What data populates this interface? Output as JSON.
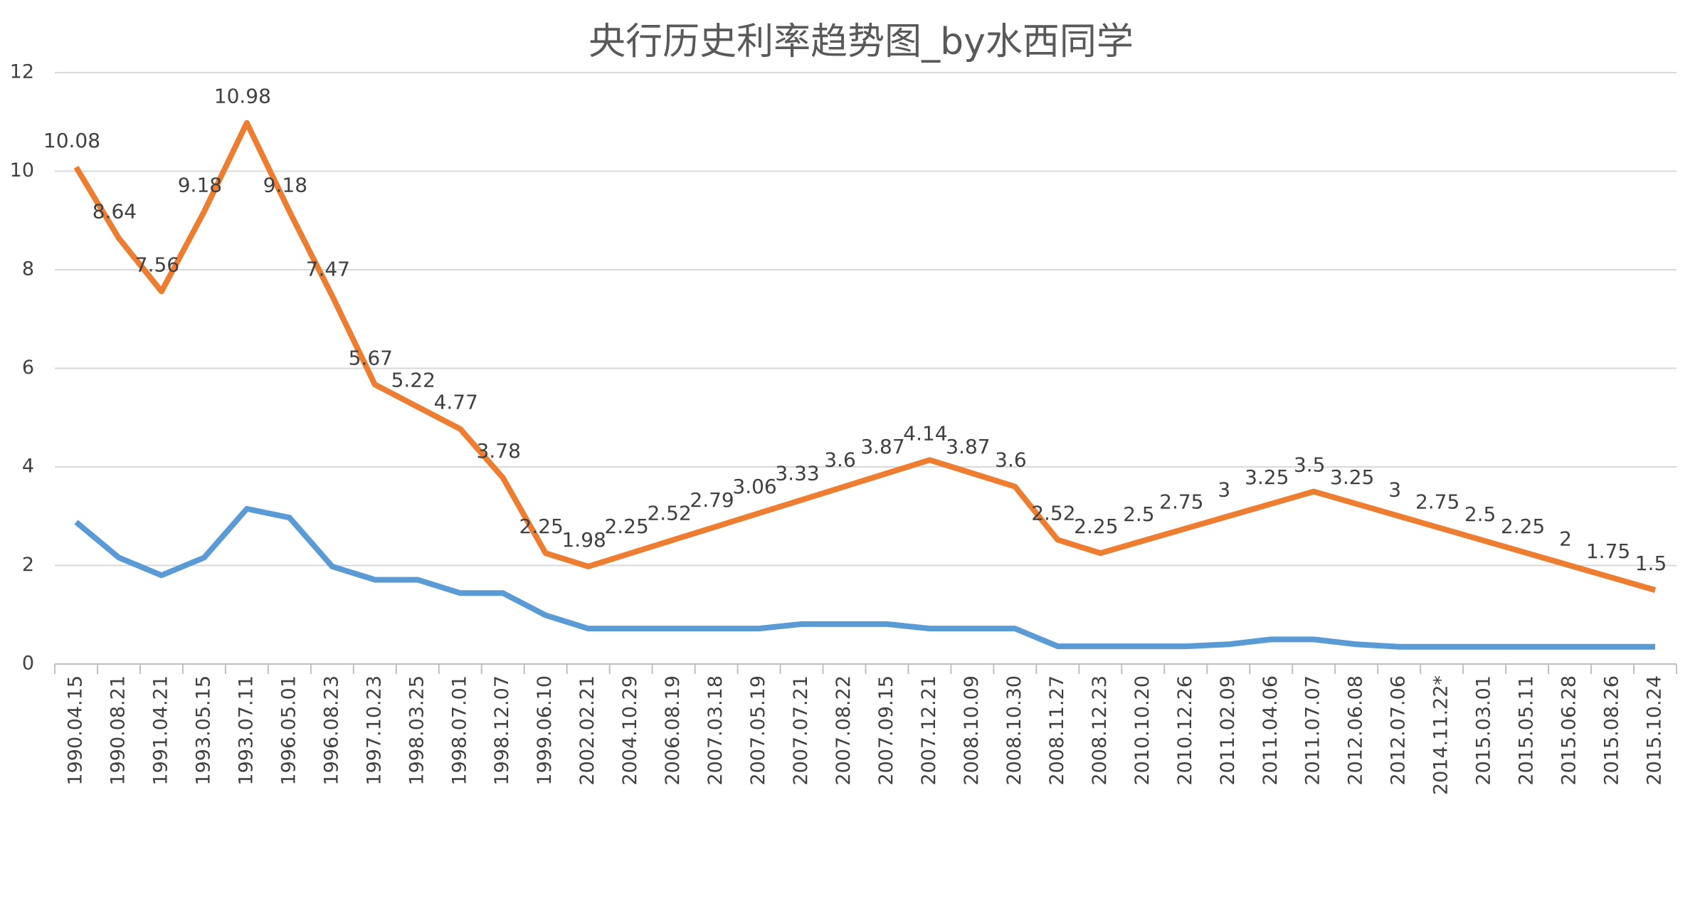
{
  "chart_data": {
    "type": "line",
    "title": "央行历史利率趋势图_by水西同学",
    "categories": [
      "1990.04.15",
      "1990.08.21",
      "1991.04.21",
      "1993.05.15",
      "1993.07.11",
      "1996.05.01",
      "1996.08.23",
      "1997.10.23",
      "1998.03.25",
      "1998.07.01",
      "1998.12.07",
      "1999.06.10",
      "2002.02.21",
      "2004.10.29",
      "2006.08.19",
      "2007.03.18",
      "2007.05.19",
      "2007.07.21",
      "2007.08.22",
      "2007.09.15",
      "2007.12.21",
      "2008.10.09",
      "2008.10.30",
      "2008.11.27",
      "2008.12.23",
      "2010.10.20",
      "2010.12.26",
      "2011.02.09",
      "2011.04.06",
      "2011.07.07",
      "2012.06.08",
      "2012.07.06",
      "2014.11.22*",
      "2015.03.01",
      "2015.05.11",
      "2015.06.28",
      "2015.08.26",
      "2015.10.24"
    ],
    "series": [
      {
        "color": "#ed7d31",
        "data_labels": true,
        "values": [
          10.08,
          8.64,
          7.56,
          9.18,
          10.98,
          9.18,
          7.47,
          5.67,
          5.22,
          4.77,
          3.78,
          2.25,
          1.98,
          2.25,
          2.52,
          2.79,
          3.06,
          3.33,
          3.6,
          3.87,
          4.14,
          3.87,
          3.6,
          2.52,
          2.25,
          2.5,
          2.75,
          3,
          3.25,
          3.5,
          3.25,
          3,
          2.75,
          2.5,
          2.25,
          2,
          1.75,
          1.5
        ]
      },
      {
        "color": "#5b9bd5",
        "data_labels": false,
        "values": [
          2.88,
          2.16,
          1.8,
          2.16,
          3.15,
          2.97,
          1.98,
          1.71,
          1.71,
          1.44,
          1.44,
          0.99,
          0.72,
          0.72,
          0.72,
          0.72,
          0.72,
          0.81,
          0.81,
          0.81,
          0.72,
          0.72,
          0.72,
          0.36,
          0.36,
          0.36,
          0.36,
          0.4,
          0.5,
          0.5,
          0.4,
          0.35,
          0.35,
          0.35,
          0.35,
          0.35,
          0.35,
          0.35
        ]
      }
    ],
    "ylim": [
      0,
      12
    ],
    "yticks": [
      0,
      2,
      4,
      6,
      8,
      10,
      12
    ],
    "grid": true
  }
}
